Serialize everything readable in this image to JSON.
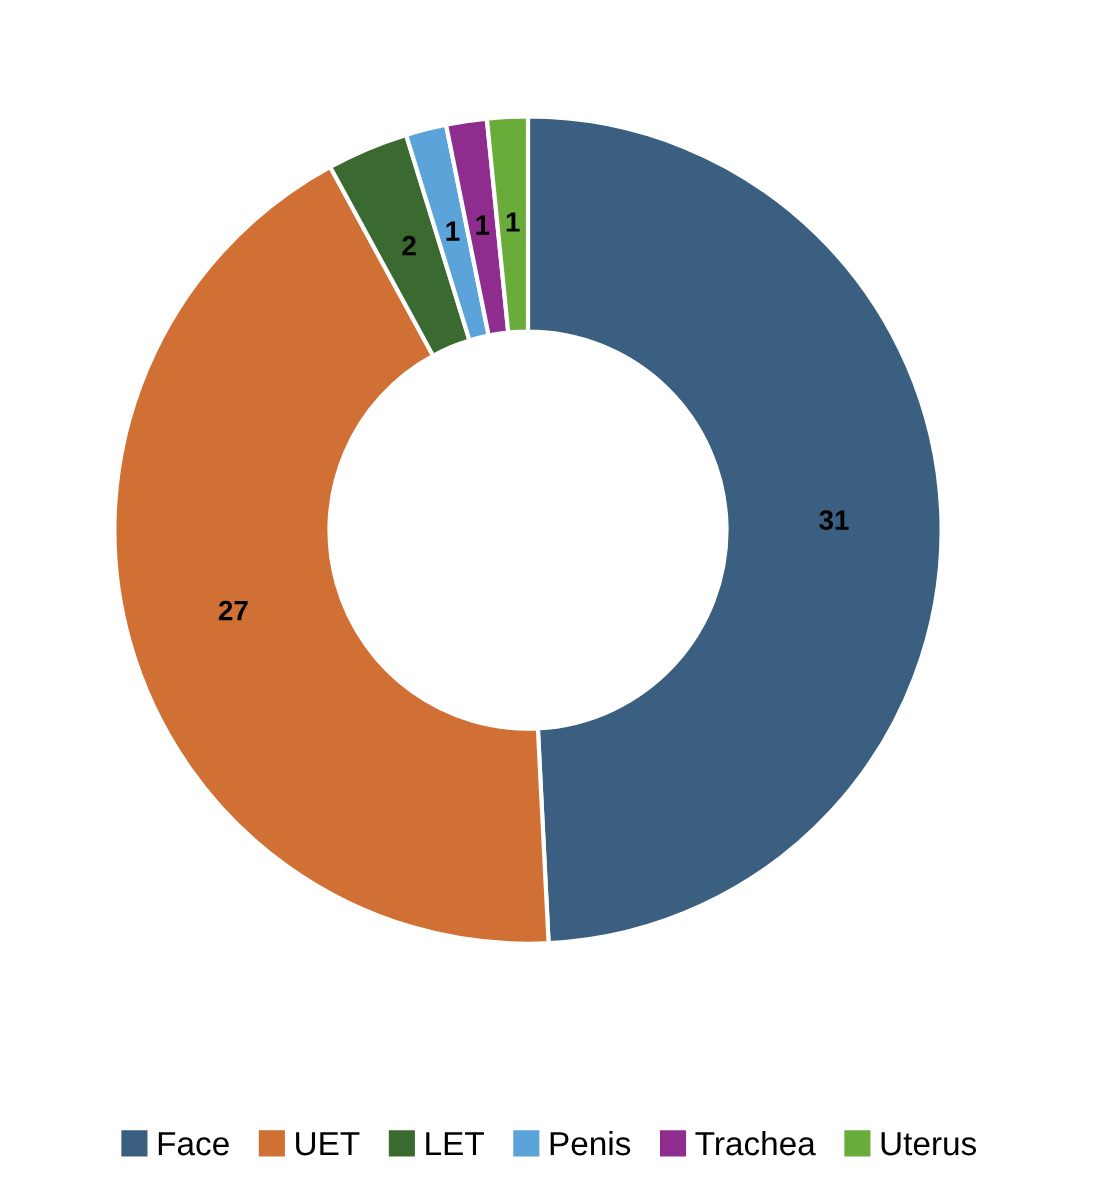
{
  "chart_data": {
    "type": "donut",
    "categories": [
      "Face",
      "UET",
      "LET",
      "Penis",
      "Trachea",
      "Uterus"
    ],
    "values": [
      31,
      27,
      2,
      1,
      1,
      1
    ],
    "colors": [
      "#3a5f80",
      "#d07035",
      "#3b6a30",
      "#5ba3d9",
      "#8e2d8e",
      "#6aac3a"
    ],
    "data_labels": true,
    "legend": "bottom"
  }
}
